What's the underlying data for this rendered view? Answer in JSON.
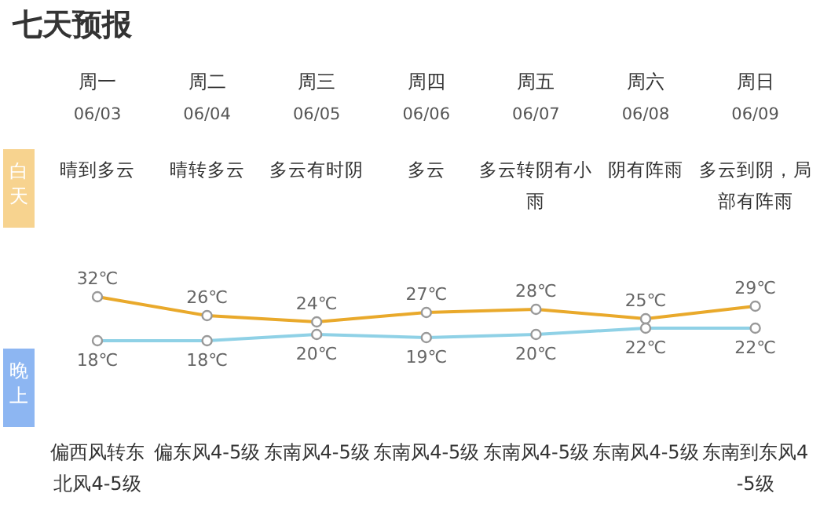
{
  "chart_data": {
    "type": "line",
    "title": "七天预报",
    "categories": [
      "周一",
      "周二",
      "周三",
      "周四",
      "周五",
      "周六",
      "周日"
    ],
    "marker": "circle",
    "series": [
      {
        "color": "#e9a92b",
        "values": [
          32,
          26,
          24,
          27,
          28,
          25,
          29
        ],
        "value_labels": [
          "32℃",
          "26℃",
          "24℃",
          "27℃",
          "28℃",
          "25℃",
          "29℃"
        ]
      },
      {
        "color": "#8fd1e6",
        "values": [
          18,
          18,
          20,
          19,
          20,
          22,
          22
        ],
        "value_labels": [
          "18℃",
          "18℃",
          "20℃",
          "19℃",
          "20℃",
          "22℃",
          "22℃"
        ]
      }
    ],
    "annotations": [
      "白天",
      "晚上",
      "06/03",
      "06/04",
      "06/05",
      "06/06",
      "06/07",
      "06/08",
      "06/09",
      "晴到多云",
      "晴转多云",
      "多云有时阴",
      "多云",
      "多云转阴有小雨",
      "阴有阵雨",
      "多云到阴，局部有阵雨",
      "偏西风转东北风4-5级",
      "偏东风4-5级",
      "东南风4-5级",
      "东南风4-5级",
      "东南风4-5级",
      "东南风4-5级",
      "东南到东风4-5级"
    ]
  }
}
